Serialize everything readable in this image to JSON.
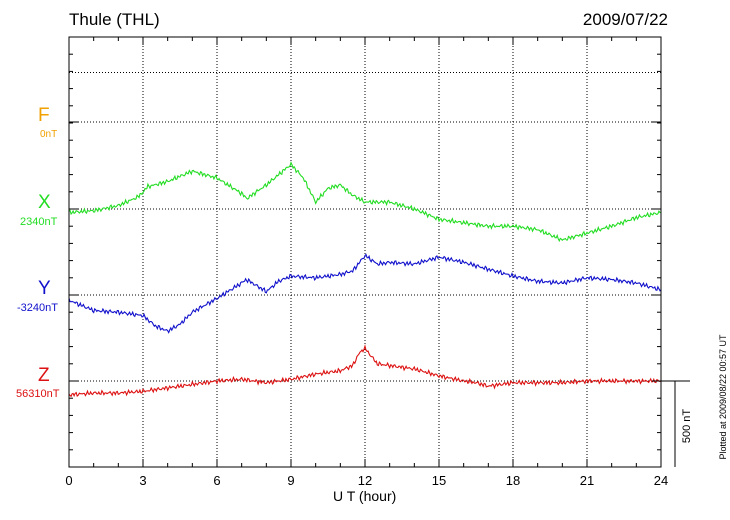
{
  "header": {
    "station": "Thule (THL)",
    "date": "2009/07/22"
  },
  "footer": {
    "plotted": "Plotted at 2009/08/22 00:57 UT"
  },
  "scale_bar": {
    "label": "500 nT",
    "value": 500
  },
  "chart_data": {
    "type": "line",
    "title": "Thule (THL)",
    "xlabel": "U T (hour)",
    "xlim": [
      0,
      24
    ],
    "xticks": [
      0,
      3,
      6,
      9,
      12,
      15,
      18,
      21,
      24
    ],
    "xtick_labels": [
      "0",
      "3",
      "6",
      "9",
      "12",
      "15",
      "18",
      "21",
      "24"
    ],
    "grid": true,
    "series": [
      {
        "name": "F",
        "baseline_label": "0nT",
        "color": "#f0a000",
        "x": [],
        "y": []
      },
      {
        "name": "X",
        "baseline_label": "2340nT",
        "color": "#22dd22",
        "x": [
          0,
          1,
          2,
          2.8,
          3.2,
          4,
          5,
          6,
          7,
          7.2,
          8,
          9,
          9.5,
          10,
          10.5,
          11,
          11.5,
          12,
          13,
          14,
          15,
          16,
          17,
          18,
          19,
          20,
          21,
          22,
          23,
          24
        ],
        "y": [
          2320,
          2330,
          2360,
          2410,
          2470,
          2500,
          2560,
          2520,
          2430,
          2400,
          2480,
          2600,
          2520,
          2380,
          2460,
          2480,
          2420,
          2380,
          2380,
          2340,
          2280,
          2260,
          2240,
          2240,
          2220,
          2160,
          2200,
          2240,
          2290,
          2320
        ]
      },
      {
        "name": "Y",
        "baseline_label": "-3240nT",
        "color": "#1111cc",
        "x": [
          0,
          1,
          2,
          3,
          3.5,
          4,
          4.5,
          5,
          6,
          7,
          7.2,
          8,
          8.5,
          9,
          10,
          11,
          11.5,
          12,
          12.5,
          13,
          14,
          15,
          16,
          17,
          18,
          19,
          20,
          21,
          22,
          23,
          24
        ],
        "y": [
          -3270,
          -3330,
          -3340,
          -3360,
          -3420,
          -3450,
          -3410,
          -3340,
          -3260,
          -3170,
          -3150,
          -3220,
          -3160,
          -3130,
          -3140,
          -3120,
          -3100,
          -3010,
          -3060,
          -3050,
          -3060,
          -3020,
          -3050,
          -3090,
          -3130,
          -3160,
          -3170,
          -3140,
          -3150,
          -3170,
          -3210
        ]
      },
      {
        "name": "Z",
        "baseline_label": "56310nT",
        "color": "#dd1111",
        "x": [
          0,
          1,
          2,
          3,
          4,
          5,
          6,
          7,
          8,
          9,
          10,
          11,
          11.5,
          11.8,
          12,
          12.5,
          13,
          14,
          15,
          16,
          16.5,
          17,
          18,
          19,
          20,
          21,
          22,
          23,
          24
        ],
        "y": [
          56230,
          56240,
          56240,
          56250,
          56270,
          56290,
          56310,
          56320,
          56300,
          56320,
          56350,
          56370,
          56400,
          56480,
          56500,
          56410,
          56400,
          56380,
          56340,
          56310,
          56300,
          56280,
          56300,
          56300,
          56300,
          56310,
          56310,
          56310,
          56310
        ]
      }
    ]
  }
}
